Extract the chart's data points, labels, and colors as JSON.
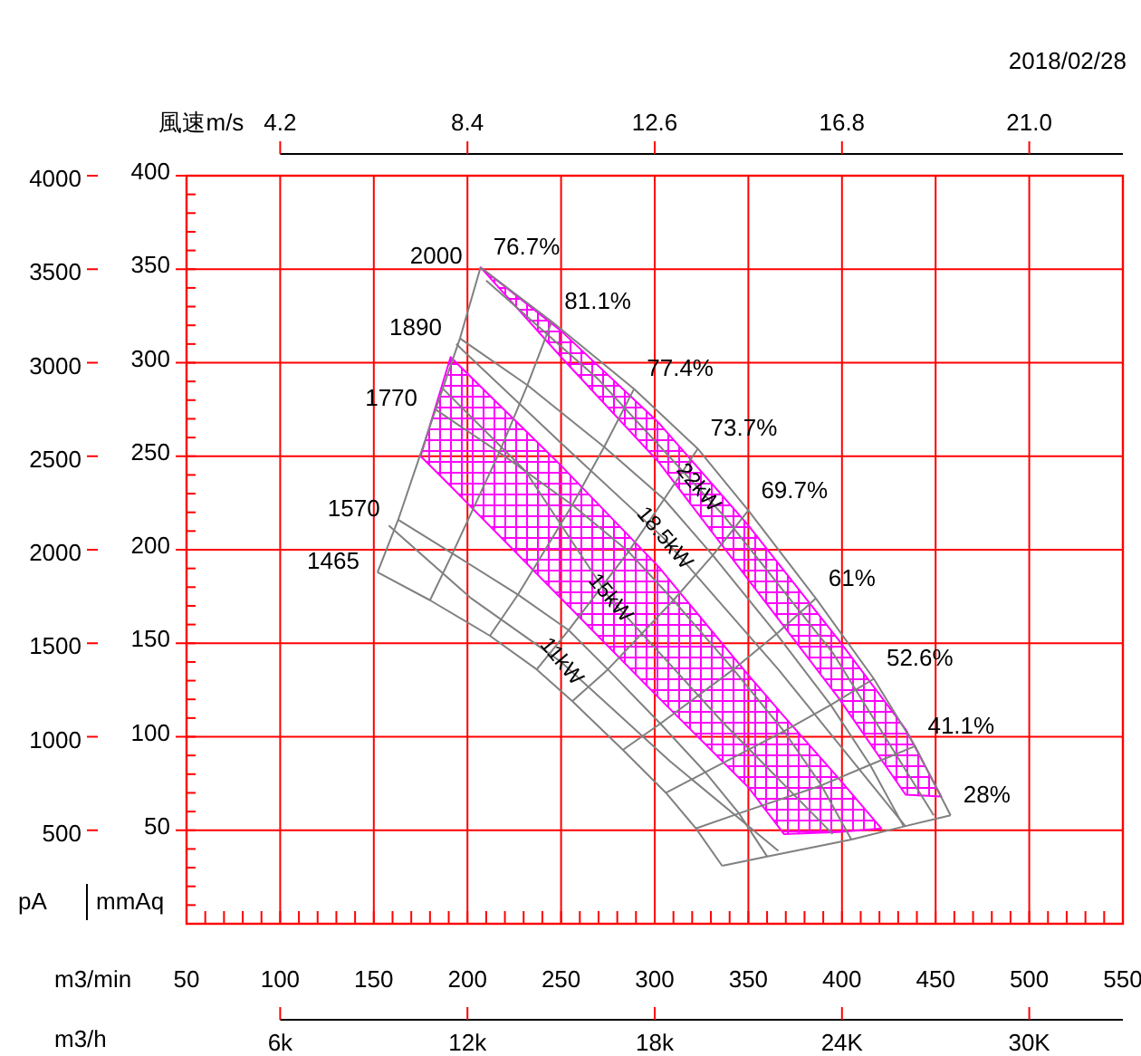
{
  "chart_data": {
    "type": "line",
    "xlabel": "m3/min",
    "ylabel": "mmAq",
    "y2label": "pA",
    "x2label": "風速m/s",
    "xlim": [
      50,
      550
    ],
    "xticks": [
      50,
      100,
      150,
      200,
      250,
      300,
      350,
      400,
      450,
      500,
      550
    ],
    "ylim": [
      0,
      400
    ],
    "yticks": [
      50,
      100,
      150,
      200,
      250,
      300,
      350,
      400
    ],
    "y2lim": [
      0,
      4000
    ],
    "y2ticks": [
      500,
      1000,
      1500,
      2000,
      2500,
      3000,
      3500,
      4000
    ],
    "x2lim": [
      2.1,
      23.1
    ],
    "x2ticks": [
      4.2,
      8.4,
      12.6,
      16.8,
      {
        "value": 21,
        "label": "21.0"
      }
    ],
    "grid": true,
    "annotations": [
      "2018/02/28",
      "m3/h",
      "6k",
      "12k",
      "18k",
      "24K",
      "30K",
      {
        "text": "22kW",
        "x": 323,
        "y": 233
      },
      {
        "text": "18.5kW",
        "x": 305,
        "y": 206
      },
      {
        "text": "15kW",
        "x": 276,
        "y": 174
      },
      {
        "text": "11kW",
        "x": 250,
        "y": 140
      }
    ],
    "series": [
      {
        "type": "area",
        "color": "#ff00ff",
        "x": [
          207,
          250,
          302,
          350,
          398,
          434,
          453,
          434,
          398,
          350,
          302,
          250
        ],
        "values": [
          351,
          317,
          268,
          213,
          152,
          104,
          68,
          69,
          121,
          184,
          247,
          303
        ]
      },
      {
        "type": "area",
        "color": "#ff00ff",
        "x": [
          175,
          191,
          250,
          302,
          350,
          369,
          398,
          421,
          398,
          369,
          350,
          302,
          250,
          191
        ],
        "values": [
          250,
          303,
          245,
          191,
          133,
          111,
          78,
          51,
          49,
          48,
          73,
          121,
          174,
          234
        ]
      },
      {
        "name": "2000",
        "color": "#808080",
        "x": [
          207,
          245,
          289,
          323,
          350,
          386,
          417,
          439,
          458
        ],
        "values": [
          351,
          322,
          286,
          254,
          221,
          174,
          131,
          95,
          58
        ]
      },
      {
        "name": "1890",
        "color": "#808080",
        "x": [
          196,
          232,
          273,
          305,
          331,
          365,
          394,
          415,
          433
        ],
        "values": [
          313,
          288,
          255,
          227,
          197,
          155,
          117,
          85,
          52
        ]
      },
      {
        "name": "1770",
        "color": "#808080",
        "x": [
          183,
          217,
          256,
          286,
          310,
          342,
          369,
          389,
          405
        ],
        "values": [
          275,
          252,
          224,
          199,
          173,
          136,
          103,
          74,
          45
        ]
      },
      {
        "name": "1570",
        "color": "#808080",
        "x": [
          163,
          192,
          227,
          254,
          275,
          303,
          327,
          345,
          360
        ],
        "values": [
          216,
          198,
          176,
          157,
          136,
          107,
          81,
          59,
          36
        ]
      },
      {
        "name": "1465",
        "color": "#808080",
        "x": [
          152,
          180,
          212,
          237,
          256,
          283,
          306,
          322,
          336
        ],
        "values": [
          188,
          173,
          154,
          136,
          119,
          93,
          70,
          51,
          31
        ]
      },
      {
        "name": "76.7%",
        "color": "#808080",
        "x": [
          207,
          196,
          183,
          163,
          152
        ],
        "values": [
          351,
          313,
          275,
          216,
          188
        ]
      },
      {
        "name": "81.1%",
        "color": "#808080",
        "x": [
          245,
          232,
          217,
          192,
          180
        ],
        "values": [
          322,
          288,
          252,
          198,
          173
        ]
      },
      {
        "name": "77.4%",
        "color": "#808080",
        "x": [
          289,
          273,
          256,
          227,
          212
        ],
        "values": [
          286,
          255,
          224,
          176,
          154
        ]
      },
      {
        "name": "73.7%",
        "color": "#808080",
        "x": [
          323,
          305,
          286,
          254,
          237
        ],
        "values": [
          254,
          227,
          199,
          157,
          136
        ]
      },
      {
        "name": "69.7%",
        "color": "#808080",
        "x": [
          350,
          331,
          310,
          275,
          256
        ],
        "values": [
          221,
          197,
          173,
          136,
          119
        ]
      },
      {
        "name": "61%",
        "color": "#808080",
        "x": [
          386,
          365,
          342,
          303,
          283
        ],
        "values": [
          174,
          155,
          136,
          107,
          93
        ]
      },
      {
        "name": "52.6%",
        "color": "#808080",
        "x": [
          417,
          394,
          369,
          327,
          306
        ],
        "values": [
          131,
          117,
          103,
          81,
          70
        ]
      },
      {
        "name": "41.1%",
        "color": "#808080",
        "x": [
          439,
          415,
          389,
          345,
          322
        ],
        "values": [
          95,
          85,
          74,
          59,
          51
        ]
      },
      {
        "name": "28%",
        "color": "#808080",
        "x": [
          458,
          433,
          405,
          360,
          336
        ],
        "values": [
          58,
          52,
          45,
          36,
          31
        ]
      },
      {
        "color": "#808080",
        "x": [
          210,
          270,
          337,
          395,
          449
        ],
        "values": [
          344,
          291,
          218,
          145,
          58
        ]
      },
      {
        "color": "#808080",
        "x": [
          194,
          250,
          305,
          366,
          434
        ],
        "values": [
          310,
          257,
          206,
          136,
          52
        ]
      },
      {
        "color": "#808080",
        "x": [
          187,
          231,
          276,
          337,
          395
        ],
        "values": [
          286,
          242,
          174,
          107,
          48
        ]
      },
      {
        "color": "#808080",
        "x": [
          158,
          202,
          250,
          308,
          366
        ],
        "values": [
          213,
          174,
          140,
          87,
          39
        ]
      }
    ]
  }
}
